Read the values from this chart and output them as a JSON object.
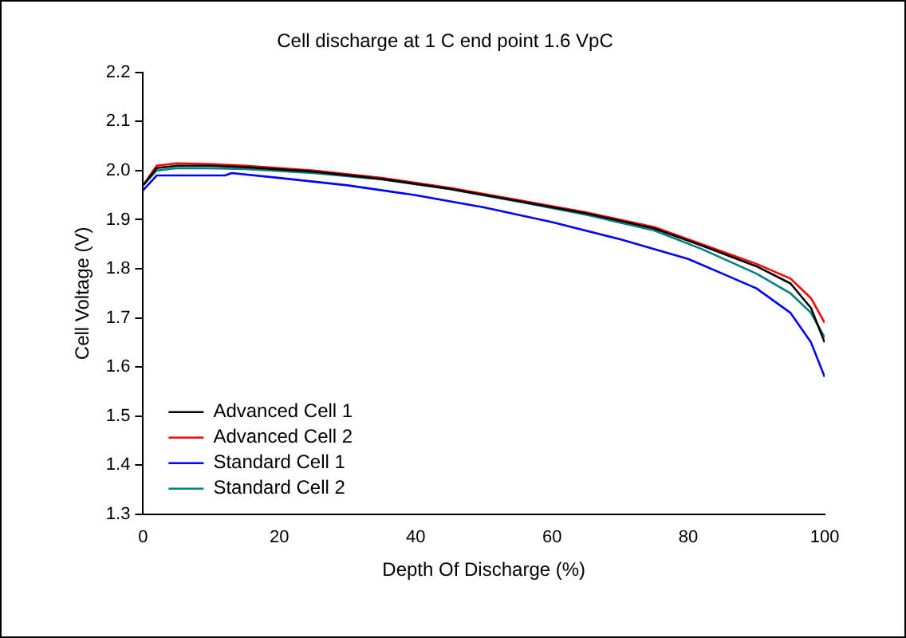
{
  "chart_data": {
    "type": "line",
    "title": "Cell discharge at 1 C end point 1.6 VpC",
    "xlabel": "Depth Of Discharge (%)",
    "ylabel": "Cell Voltage (V)",
    "x": [
      0,
      2,
      5,
      10,
      15,
      25,
      35,
      45,
      55,
      65,
      75,
      82,
      90,
      95,
      98,
      100
    ],
    "series": [
      {
        "name": "Advanced Cell 1",
        "color": "#000000",
        "values": [
          1.97,
          2.005,
          2.01,
          2.01,
          2.007,
          1.998,
          1.983,
          1.963,
          1.938,
          1.913,
          1.882,
          1.847,
          1.805,
          1.77,
          1.72,
          1.65
        ]
      },
      {
        "name": "Advanced Cell 2",
        "color": "#ff0000",
        "values": [
          1.97,
          2.01,
          2.015,
          2.013,
          2.01,
          2.0,
          1.985,
          1.965,
          1.94,
          1.915,
          1.885,
          1.85,
          1.81,
          1.78,
          1.74,
          1.69
        ]
      },
      {
        "name": "Standard Cell 1",
        "color": "#0000ff",
        "x": [
          0,
          2,
          5,
          12,
          13,
          20,
          30,
          40,
          50,
          60,
          70,
          80,
          85,
          90,
          95,
          98,
          100
        ],
        "values": [
          1.96,
          1.99,
          1.99,
          1.99,
          1.995,
          1.985,
          1.97,
          1.95,
          1.925,
          1.895,
          1.86,
          1.82,
          1.79,
          1.76,
          1.71,
          1.65,
          1.58
        ]
      },
      {
        "name": "Standard Cell 2",
        "color": "#008080",
        "values": [
          1.97,
          2.0,
          2.005,
          2.005,
          2.003,
          1.995,
          1.982,
          1.962,
          1.937,
          1.91,
          1.878,
          1.84,
          1.79,
          1.75,
          1.71,
          1.66
        ]
      }
    ],
    "xlim": [
      0,
      100
    ],
    "xticks": [
      0,
      20,
      40,
      60,
      80,
      100
    ],
    "ylim": [
      1.3,
      2.2
    ],
    "yticks": [
      1.3,
      1.4,
      1.5,
      1.6,
      1.7,
      1.8,
      1.9,
      {
        "value": 2,
        "label": "2.0"
      },
      2.1,
      2.2
    ],
    "grid": false,
    "legend": "bottom left",
    "marker": "none",
    "line_style": "solid"
  }
}
